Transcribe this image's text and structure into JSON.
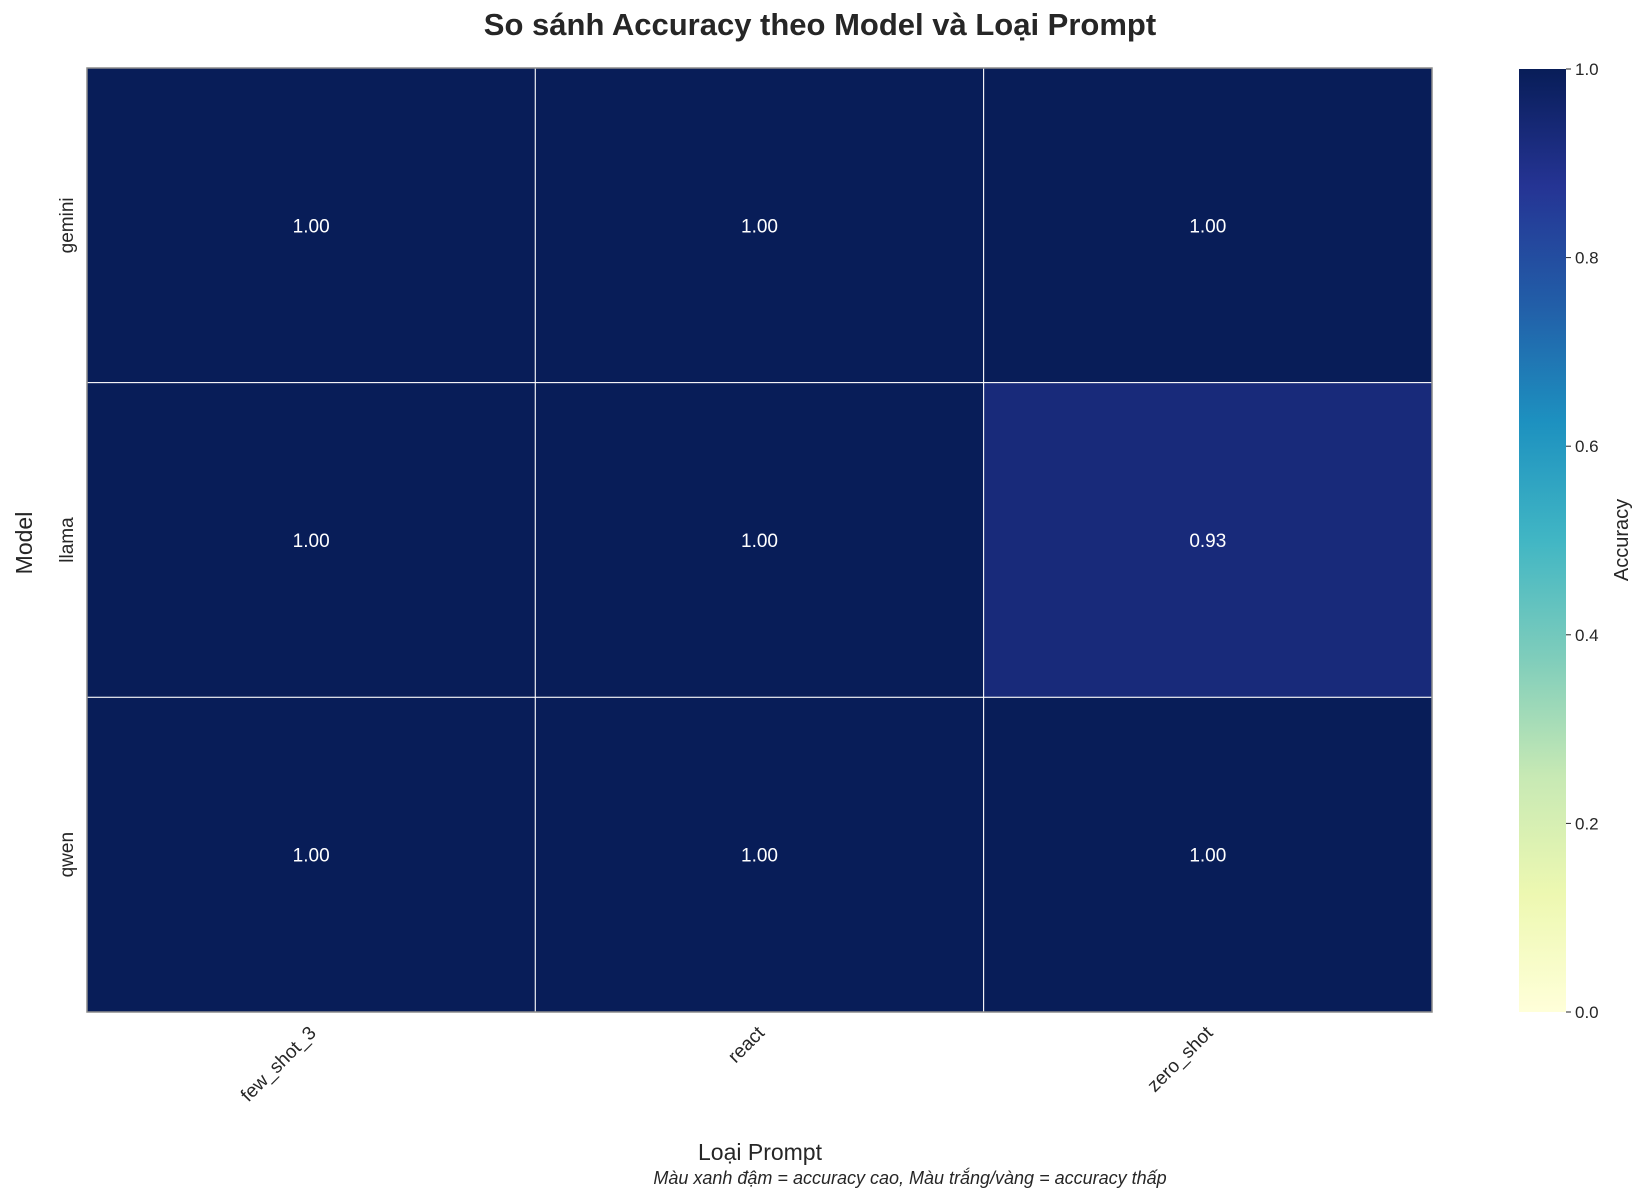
{
  "chart_data": {
    "type": "heatmap",
    "title": "So sánh Accuracy theo Model và Loại Prompt",
    "xlabel": "Loại Prompt",
    "ylabel": "Model",
    "x_categories": [
      "few_shot_3",
      "react",
      "zero_shot"
    ],
    "y_categories": [
      "gemini",
      "llama",
      "qwen"
    ],
    "values": [
      [
        1.0,
        1.0,
        1.0
      ],
      [
        1.0,
        1.0,
        0.93
      ],
      [
        1.0,
        1.0,
        1.0
      ]
    ],
    "value_labels": [
      [
        "1.00",
        "1.00",
        "1.00"
      ],
      [
        "1.00",
        "1.00",
        "0.93"
      ],
      [
        "1.00",
        "1.00",
        "1.00"
      ]
    ],
    "colormap": "YlGnBu",
    "colorbar": {
      "label": "Accuracy",
      "vmin": 0.0,
      "vmax": 1.0,
      "ticks": [
        "0.0",
        "0.2",
        "0.4",
        "0.6",
        "0.8",
        "1.0"
      ],
      "tick_values": [
        0.0,
        0.2,
        0.4,
        0.6,
        0.8,
        1.0
      ]
    },
    "footnote": "Màu xanh đậm = accuracy cao, Màu trắng/vàng = accuracy thấp"
  },
  "colors": {
    "cmap_stops": [
      "#ffffd9",
      "#edf8b1",
      "#c7e9b4",
      "#7fcdbb",
      "#41b6c4",
      "#1d91c0",
      "#225ea8",
      "#253494",
      "#081d58"
    ],
    "grid_line": "#ffffff",
    "frame": "#8c8c8c",
    "cell_text": "#ffffff"
  }
}
